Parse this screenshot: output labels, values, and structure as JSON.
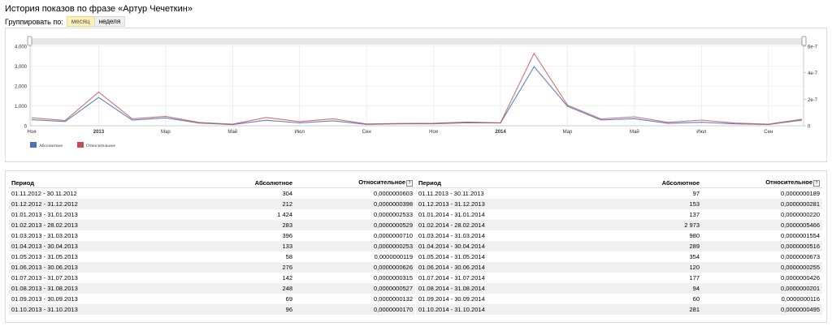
{
  "page": {
    "title": "История показов по фразе «Артур Чечеткин»"
  },
  "group": {
    "label": "Группировать по:",
    "month": "месяц",
    "week": "неделя"
  },
  "colors": {
    "absolute": "#4a74b8",
    "relative": "#c0504d",
    "grid": "#e4e4e4",
    "handle_bar": "#e6e6e6"
  },
  "chart_data": {
    "type": "line",
    "x": [
      "2012-11",
      "2012-12",
      "2013-01",
      "2013-02",
      "2013-03",
      "2013-04",
      "2013-05",
      "2013-06",
      "2013-07",
      "2013-08",
      "2013-09",
      "2013-10",
      "2013-11",
      "2013-12",
      "2014-01",
      "2014-02",
      "2014-03",
      "2014-04",
      "2014-05",
      "2014-06",
      "2014-07",
      "2014-08",
      "2014-09",
      "2014-10"
    ],
    "x_tick_labels": [
      "Ноя",
      "2013",
      "Мар",
      "Май",
      "Июл",
      "Сен",
      "Ноя",
      "2014",
      "Мар",
      "Май",
      "Июл",
      "Сен"
    ],
    "x_tick_labels_bold": [
      "2013",
      "2014"
    ],
    "y_left": {
      "ticks": [
        "0",
        "1,000",
        "2,000",
        "3,000",
        "4,000"
      ],
      "range": [
        0,
        4000
      ]
    },
    "y_right": {
      "ticks": [
        "0",
        "2e-7",
        "4e-7",
        "6e-7"
      ],
      "range": [
        0,
        6e-07
      ]
    },
    "series": [
      {
        "name": "Абсолютное",
        "axis": "left",
        "values": [
          304,
          212,
          1424,
          283,
          396,
          133,
          58,
          276,
          142,
          248,
          69,
          96,
          97,
          153,
          137,
          2973,
          980,
          289,
          354,
          120,
          177,
          94,
          60,
          281
        ]
      },
      {
        "name": "Относительное",
        "axis": "right",
        "values": [
          6.03e-08,
          3.98e-08,
          2.533e-07,
          5.29e-08,
          7.1e-08,
          2.53e-08,
          1.19e-08,
          6.26e-08,
          3.15e-08,
          5.27e-08,
          1.32e-08,
          1.7e-08,
          1.89e-08,
          2.81e-08,
          2.2e-08,
          5.466e-07,
          1.554e-07,
          5.16e-08,
          6.73e-08,
          2.55e-08,
          4.26e-08,
          2.01e-08,
          1.16e-08,
          4.95e-08
        ]
      }
    ],
    "legend": "bottom-left",
    "grid": true
  },
  "table": {
    "headers": {
      "period": "Период",
      "absolute": "Абсолютное",
      "relative": "Относительное"
    },
    "left_rows": [
      [
        "01.11.2012 - 30.11.2012",
        "304",
        "0,0000000603"
      ],
      [
        "01.12.2012 - 31.12.2012",
        "212",
        "0,0000000398"
      ],
      [
        "01.01.2013 - 31.01.2013",
        "1 424",
        "0,0000002533"
      ],
      [
        "01.02.2013 - 28.02.2013",
        "283",
        "0,0000000529"
      ],
      [
        "01.03.2013 - 31.03.2013",
        "396",
        "0,0000000710"
      ],
      [
        "01.04.2013 - 30.04.2013",
        "133",
        "0,0000000253"
      ],
      [
        "01.05.2013 - 31.05.2013",
        "58",
        "0,0000000119"
      ],
      [
        "01.06.2013 - 30.06.2013",
        "276",
        "0,0000000626"
      ],
      [
        "01.07.2013 - 31.07.2013",
        "142",
        "0,0000000315"
      ],
      [
        "01.08.2013 - 31.08.2013",
        "248",
        "0,0000000527"
      ],
      [
        "01.09.2013 - 30.09.2013",
        "69",
        "0,0000000132"
      ],
      [
        "01.10.2013 - 31.10.2013",
        "96",
        "0,0000000170"
      ]
    ],
    "right_rows": [
      [
        "01.11.2013 - 30.11.2013",
        "97",
        "0,0000000189"
      ],
      [
        "01.12.2013 - 31.12.2013",
        "153",
        "0,0000000281"
      ],
      [
        "01.01.2014 - 31.01.2014",
        "137",
        "0,0000000220"
      ],
      [
        "01.02.2014 - 28.02.2014",
        "2 973",
        "0,0000005466"
      ],
      [
        "01.03.2014 - 31.03.2014",
        "980",
        "0,0000001554"
      ],
      [
        "01.04.2014 - 30.04.2014",
        "289",
        "0,0000000516"
      ],
      [
        "01.05.2014 - 31.05.2014",
        "354",
        "0,0000000673"
      ],
      [
        "01.06.2014 - 30.06.2014",
        "120",
        "0,0000000255"
      ],
      [
        "01.07.2014 - 31.07.2014",
        "177",
        "0,0000000426"
      ],
      [
        "01.08.2014 - 31.08.2014",
        "94",
        "0,0000000201"
      ],
      [
        "01.09.2014 - 30.09.2014",
        "60",
        "0,0000000116"
      ],
      [
        "01.10.2014 - 31.10.2014",
        "281",
        "0,0000000495"
      ]
    ]
  }
}
